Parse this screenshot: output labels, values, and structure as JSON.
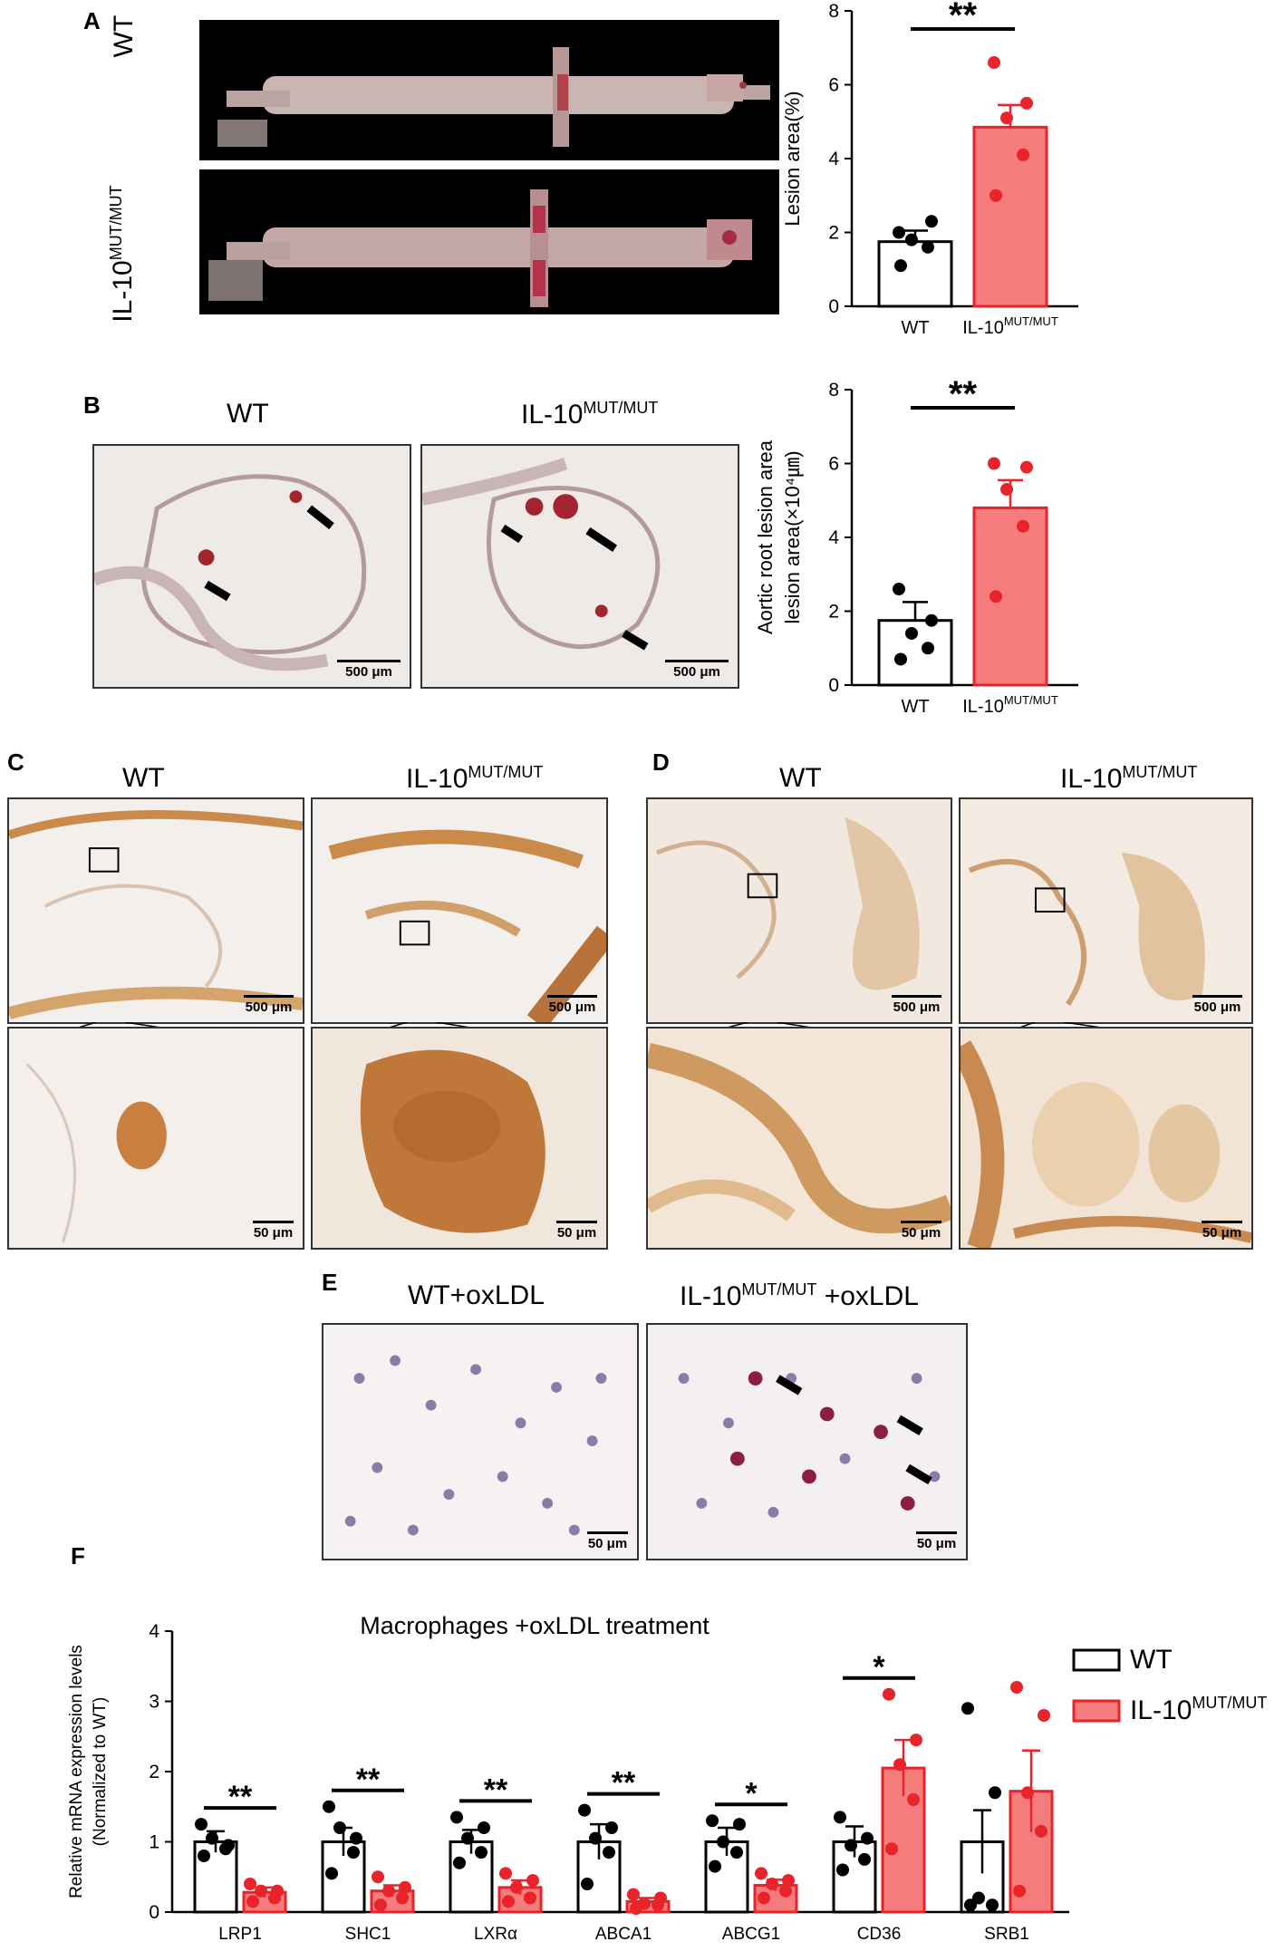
{
  "panels": {
    "A": {
      "label": "A",
      "rows": [
        "WT",
        "IL-10",
        "MUT/MUT"
      ],
      "chart": {
        "ylabel": "Lesion area(%)",
        "xticks": [
          "WT",
          "IL-10",
          "MUT/MUT"
        ]
      }
    },
    "B": {
      "label": "B",
      "cond_wt": "WT",
      "cond_mut": "IL-10",
      "cond_mut_sup": "MUT/MUT",
      "scale": "500 μm",
      "chart": {
        "ylabel1": "Aortic root lesion area",
        "ylabel2": "lesion area(×10⁴㎛)"
      }
    },
    "C": {
      "label": "C",
      "cond_wt": "WT",
      "cond_mut": "IL-10",
      "cond_mut_sup": "MUT/MUT",
      "scale_big": "500 μm",
      "scale_small": "50 μm"
    },
    "D": {
      "label": "D",
      "cond_wt": "WT",
      "cond_mut": "IL-10",
      "cond_mut_sup": "MUT/MUT",
      "scale_big": "500 μm",
      "scale_small": "50 μm"
    },
    "E": {
      "label": "E",
      "cond_wt": "WT+oxLDL",
      "cond_mut": "IL-10",
      "cond_mut_sup": "MUT/MUT",
      "cond_mut_suffix": " +oxLDL",
      "scale": "50 μm"
    },
    "F": {
      "label": "F",
      "title": "Macrophages +oxLDL treatment",
      "ylabel1": "Relative mRNA expression levels",
      "ylabel2": "(Normalized to WT)",
      "legend_wt": "WT",
      "legend_mut": "IL-10",
      "legend_mut_sup": "MUT/MUT"
    }
  },
  "colors": {
    "mut": "#f47c7c",
    "mut_point": "#e8232a",
    "wt_fill": "#ffffff",
    "wt_point": "#000000"
  },
  "chart_data": [
    {
      "id": "A",
      "type": "bar",
      "categories": [
        "WT",
        "IL-10MUT/MUT"
      ],
      "series": [
        {
          "values": [
            1.75,
            4.85
          ],
          "sem": [
            0.3,
            0.6
          ],
          "points": [
            [
              1.1,
              1.6,
              1.8,
              2.3,
              2.0
            ],
            [
              3.0,
              4.1,
              5.1,
              5.5,
              6.6
            ]
          ]
        }
      ],
      "ylabel": "Lesion area(%)",
      "ylim": [
        0,
        8
      ],
      "yticks": [
        0,
        2,
        4,
        6,
        8
      ],
      "significance": "**"
    },
    {
      "id": "B",
      "type": "bar",
      "categories": [
        "WT",
        "IL-10MUT/MUT"
      ],
      "series": [
        {
          "values": [
            1.75,
            4.8
          ],
          "sem": [
            0.5,
            0.75
          ],
          "points": [
            [
              0.7,
              1.0,
              1.4,
              1.75,
              2.6
            ],
            [
              2.4,
              4.3,
              5.3,
              5.9,
              6.0
            ]
          ]
        }
      ],
      "ylabel": "Aortic root lesion area lesion area(×10⁴㎛)",
      "ylim": [
        0,
        8
      ],
      "yticks": [
        0,
        2,
        4,
        6,
        8
      ],
      "significance": "**"
    },
    {
      "id": "F",
      "type": "bar",
      "title": "Macrophages +oxLDL treatment",
      "categories": [
        "LRP1",
        "SHC1",
        "LXRα",
        "ABCA1",
        "ABCG1",
        "CD36",
        "SRB1"
      ],
      "series": [
        {
          "name": "WT",
          "values": [
            1.0,
            1.0,
            1.0,
            1.0,
            1.0,
            1.0,
            1.0
          ],
          "sem": [
            0.15,
            0.2,
            0.17,
            0.25,
            0.2,
            0.22,
            0.45
          ],
          "points": [
            [
              0.8,
              0.9,
              1.05,
              0.95,
              1.25
            ],
            [
              0.55,
              0.85,
              1.2,
              1.05,
              1.5
            ],
            [
              0.7,
              0.85,
              1.05,
              1.2,
              1.35
            ],
            [
              0.4,
              0.85,
              1.05,
              1.2,
              1.45
            ],
            [
              0.65,
              0.85,
              1.0,
              1.25,
              1.3
            ],
            [
              0.6,
              0.75,
              0.95,
              1.05,
              1.35
            ],
            [
              0.1,
              0.1,
              0.2,
              1.7,
              2.9
            ]
          ]
        },
        {
          "name": "IL-10MUT/MUT",
          "values": [
            0.28,
            0.3,
            0.35,
            0.15,
            0.38,
            2.05,
            1.72
          ],
          "sem": [
            0.07,
            0.08,
            0.1,
            0.05,
            0.08,
            0.4,
            0.58
          ],
          "points": [
            [
              0.15,
              0.2,
              0.3,
              0.3,
              0.4
            ],
            [
              0.1,
              0.2,
              0.3,
              0.35,
              0.5
            ],
            [
              0.15,
              0.2,
              0.35,
              0.45,
              0.55
            ],
            [
              0.05,
              0.1,
              0.12,
              0.2,
              0.25
            ],
            [
              0.2,
              0.3,
              0.4,
              0.45,
              0.55
            ],
            [
              0.9,
              1.6,
              2.1,
              2.45,
              3.1
            ],
            [
              0.3,
              1.15,
              1.7,
              2.8,
              3.2
            ]
          ]
        }
      ],
      "ylabel": "Relative mRNA expression levels (Normalized to WT)",
      "ylim": [
        0,
        4
      ],
      "yticks": [
        0,
        1,
        2,
        3,
        4
      ],
      "significance": [
        "**",
        "**",
        "**",
        "**",
        "*",
        "*",
        ""
      ]
    }
  ]
}
